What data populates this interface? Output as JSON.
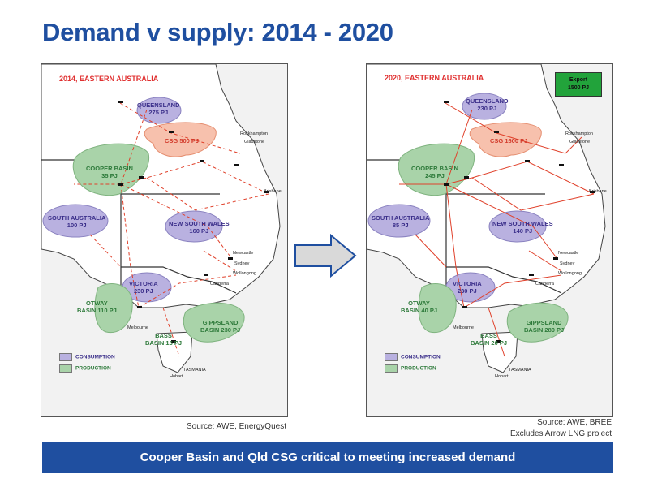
{
  "title": "Demand v supply: 2014 - 2020",
  "map_2014": {
    "heading": "2014, EASTERN AUSTRALIA",
    "regions": {
      "queensland": "QUEENSLAND\n275 PJ",
      "csg": "CSG 500 PJ",
      "cooper": "COOPER BASIN\n35 PJ",
      "sa": "SOUTH AUSTRALIA\n100 PJ",
      "nsw": "NEW SOUTH WALES\n160 PJ",
      "victoria": "VICTORIA\n230 PJ",
      "otway": "OTWAY\nBASIN 110 PJ",
      "gippsland": "GIPPSLAND\nBASIN 230 PJ",
      "bass": "BASS\nBASIN 15 PJ"
    },
    "cities": {
      "rockhampton": "Rockhampton",
      "gladstone": "Gladstone",
      "brisbane": "Brisbane",
      "newcastle": "Newcastle",
      "sydney": "Sydney",
      "wollongong": "Wollongong",
      "canberra": "Canberra",
      "melbourne": "Melbourne",
      "tasmania": "TASMANIA",
      "hobart": "Hobart"
    },
    "legend": {
      "consumption": "CONSUMPTION",
      "production": "PRODUCTION"
    }
  },
  "map_2020": {
    "heading": "2020, EASTERN AUSTRALIA",
    "export": "Export\n1500 PJ",
    "regions": {
      "queensland": "QUEENSLAND\n230 PJ",
      "csg": "CSG 1600 PJ",
      "cooper": "COOPER BASIN\n245 PJ",
      "sa": "SOUTH AUSTRALIA\n85 PJ",
      "nsw": "NEW SOUTH WALES\n140 PJ",
      "victoria": "VICTORIA\n230 PJ",
      "otway": "OTWAY\nBASIN 40 PJ",
      "gippsland": "GIPPSLAND\nBASIN 280 PJ",
      "bass": "BASS\nBASIN 20 PJ"
    },
    "cities": {
      "rockhampton": "Rockhampton",
      "gladstone": "Gladstone",
      "brisbane": "Brisbane",
      "newcastle": "Newcastle",
      "sydney": "Sydney",
      "wollongong": "Wollongong",
      "canberra": "Canberra",
      "melbourne": "Melbourne",
      "tasmania": "TASMANIA",
      "hobart": "Hobart"
    },
    "legend": {
      "consumption": "CONSUMPTION",
      "production": "PRODUCTION"
    }
  },
  "source_left": "Source: AWE, EnergyQuest",
  "source_right_1": "Source: AWE, BREE",
  "source_right_2": "Excludes Arrow LNG project",
  "banner": "Cooper Basin and Qld CSG critical to meeting increased demand",
  "colors": {
    "title": "#1f4fa0",
    "banner": "#1f4fa0",
    "consumption": "#b9b1e0",
    "production": "#a9d3a9",
    "csg": "#f7c1ad",
    "pipeline": "#e0402a",
    "export": "#22a33b"
  }
}
